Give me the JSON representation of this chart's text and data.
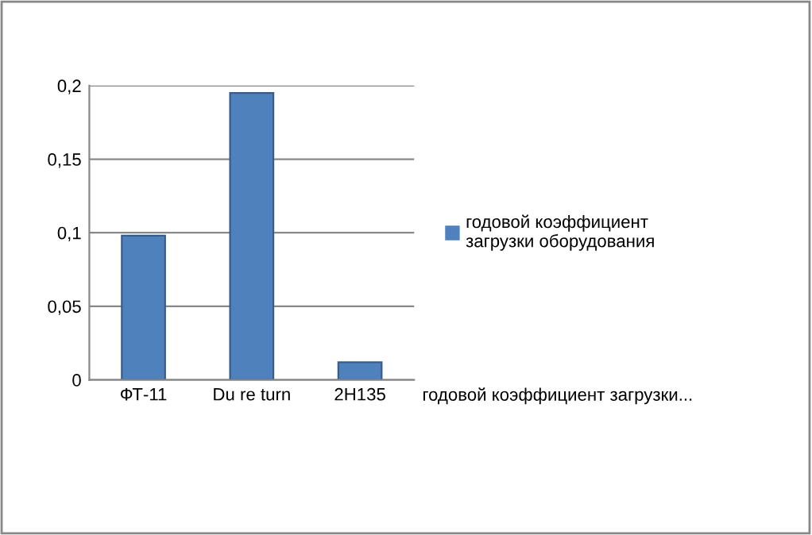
{
  "chart_data": {
    "type": "bar",
    "categories": [
      "ФТ-11",
      "Du re turn",
      "2Н135"
    ],
    "series": [
      {
        "name": "годовой коэффициент\nзагрузки оборудования",
        "color": "#4f81bd",
        "values": [
          0.098,
          0.195,
          0.012
        ]
      }
    ],
    "ylim": [
      0,
      0.2
    ],
    "yticks": [
      {
        "value": 0,
        "label": "0"
      },
      {
        "value": 0.05,
        "label": "0,05"
      },
      {
        "value": 0.1,
        "label": "0,1"
      },
      {
        "value": 0.15,
        "label": "0,15"
      },
      {
        "value": 0.2,
        "label": "0,2"
      }
    ],
    "grid": "y",
    "legend": "right",
    "annotations": [
      "годовой коэффициент загрузки..."
    ]
  }
}
